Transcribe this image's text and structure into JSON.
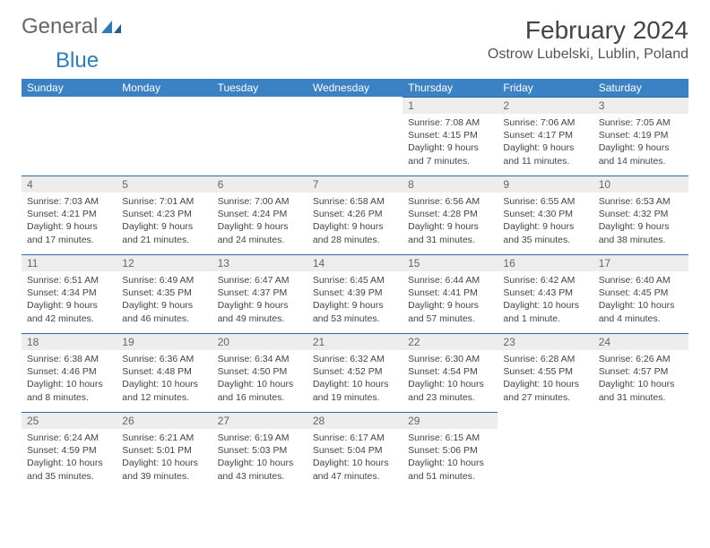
{
  "logo": {
    "text1": "General",
    "text2": "Blue"
  },
  "header": {
    "month_title": "February 2024",
    "location": "Ostrow Lubelski, Lublin, Poland"
  },
  "colors": {
    "header_bg": "#3b82c4",
    "daynum_bg": "#ededed",
    "row_border": "#2b6aa5",
    "logo_blue": "#2b7bbf",
    "text": "#444444"
  },
  "weekdays": [
    "Sunday",
    "Monday",
    "Tuesday",
    "Wednesday",
    "Thursday",
    "Friday",
    "Saturday"
  ],
  "weeks": [
    [
      null,
      null,
      null,
      null,
      {
        "n": "1",
        "sr": "7:08 AM",
        "ss": "4:15 PM",
        "dl": "9 hours and 7 minutes."
      },
      {
        "n": "2",
        "sr": "7:06 AM",
        "ss": "4:17 PM",
        "dl": "9 hours and 11 minutes."
      },
      {
        "n": "3",
        "sr": "7:05 AM",
        "ss": "4:19 PM",
        "dl": "9 hours and 14 minutes."
      }
    ],
    [
      {
        "n": "4",
        "sr": "7:03 AM",
        "ss": "4:21 PM",
        "dl": "9 hours and 17 minutes."
      },
      {
        "n": "5",
        "sr": "7:01 AM",
        "ss": "4:23 PM",
        "dl": "9 hours and 21 minutes."
      },
      {
        "n": "6",
        "sr": "7:00 AM",
        "ss": "4:24 PM",
        "dl": "9 hours and 24 minutes."
      },
      {
        "n": "7",
        "sr": "6:58 AM",
        "ss": "4:26 PM",
        "dl": "9 hours and 28 minutes."
      },
      {
        "n": "8",
        "sr": "6:56 AM",
        "ss": "4:28 PM",
        "dl": "9 hours and 31 minutes."
      },
      {
        "n": "9",
        "sr": "6:55 AM",
        "ss": "4:30 PM",
        "dl": "9 hours and 35 minutes."
      },
      {
        "n": "10",
        "sr": "6:53 AM",
        "ss": "4:32 PM",
        "dl": "9 hours and 38 minutes."
      }
    ],
    [
      {
        "n": "11",
        "sr": "6:51 AM",
        "ss": "4:34 PM",
        "dl": "9 hours and 42 minutes."
      },
      {
        "n": "12",
        "sr": "6:49 AM",
        "ss": "4:35 PM",
        "dl": "9 hours and 46 minutes."
      },
      {
        "n": "13",
        "sr": "6:47 AM",
        "ss": "4:37 PM",
        "dl": "9 hours and 49 minutes."
      },
      {
        "n": "14",
        "sr": "6:45 AM",
        "ss": "4:39 PM",
        "dl": "9 hours and 53 minutes."
      },
      {
        "n": "15",
        "sr": "6:44 AM",
        "ss": "4:41 PM",
        "dl": "9 hours and 57 minutes."
      },
      {
        "n": "16",
        "sr": "6:42 AM",
        "ss": "4:43 PM",
        "dl": "10 hours and 1 minute."
      },
      {
        "n": "17",
        "sr": "6:40 AM",
        "ss": "4:45 PM",
        "dl": "10 hours and 4 minutes."
      }
    ],
    [
      {
        "n": "18",
        "sr": "6:38 AM",
        "ss": "4:46 PM",
        "dl": "10 hours and 8 minutes."
      },
      {
        "n": "19",
        "sr": "6:36 AM",
        "ss": "4:48 PM",
        "dl": "10 hours and 12 minutes."
      },
      {
        "n": "20",
        "sr": "6:34 AM",
        "ss": "4:50 PM",
        "dl": "10 hours and 16 minutes."
      },
      {
        "n": "21",
        "sr": "6:32 AM",
        "ss": "4:52 PM",
        "dl": "10 hours and 19 minutes."
      },
      {
        "n": "22",
        "sr": "6:30 AM",
        "ss": "4:54 PM",
        "dl": "10 hours and 23 minutes."
      },
      {
        "n": "23",
        "sr": "6:28 AM",
        "ss": "4:55 PM",
        "dl": "10 hours and 27 minutes."
      },
      {
        "n": "24",
        "sr": "6:26 AM",
        "ss": "4:57 PM",
        "dl": "10 hours and 31 minutes."
      }
    ],
    [
      {
        "n": "25",
        "sr": "6:24 AM",
        "ss": "4:59 PM",
        "dl": "10 hours and 35 minutes."
      },
      {
        "n": "26",
        "sr": "6:21 AM",
        "ss": "5:01 PM",
        "dl": "10 hours and 39 minutes."
      },
      {
        "n": "27",
        "sr": "6:19 AM",
        "ss": "5:03 PM",
        "dl": "10 hours and 43 minutes."
      },
      {
        "n": "28",
        "sr": "6:17 AM",
        "ss": "5:04 PM",
        "dl": "10 hours and 47 minutes."
      },
      {
        "n": "29",
        "sr": "6:15 AM",
        "ss": "5:06 PM",
        "dl": "10 hours and 51 minutes."
      },
      null,
      null
    ]
  ],
  "labels": {
    "sunrise": "Sunrise: ",
    "sunset": "Sunset: ",
    "daylight": "Daylight: "
  }
}
